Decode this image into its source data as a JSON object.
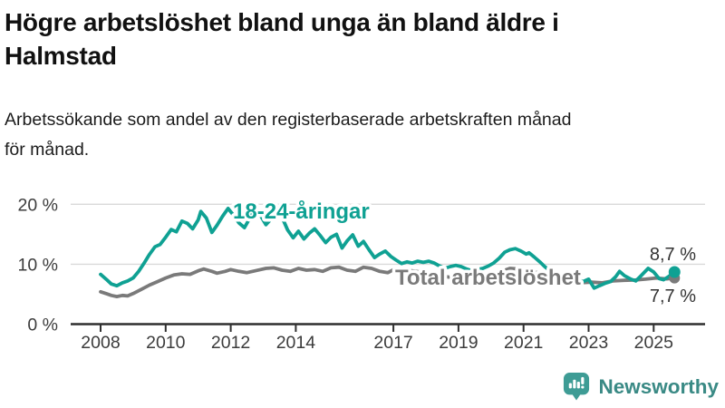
{
  "header": {
    "title": "Högre arbetslöshet bland unga än bland äldre i Halmstad",
    "title_lines": [
      "Högre arbetslöshet bland unga än bland äldre i",
      "Halmstad"
    ],
    "subtitle_lines": [
      "Arbetssökande som andel av den registerbaserade arbetskraften månad",
      "för månad."
    ]
  },
  "chart_data": {
    "type": "line",
    "title": "Högre arbetslöshet bland unga än bland äldre i Halmstad",
    "subtitle": "Arbetssökande som andel av den registerbaserade arbetskraften månad för månad.",
    "unit": "%",
    "grid": "horizontal",
    "x_axis": {
      "lim": [
        2007.6,
        2025.9
      ],
      "ticks": [
        {
          "year": 2008,
          "label": "2008"
        },
        {
          "year": 2010,
          "label": "2010"
        },
        {
          "year": 2012,
          "label": "2012"
        },
        {
          "year": 2014,
          "label": "2014"
        },
        {
          "year": 2017,
          "label": "2017"
        },
        {
          "year": 2019,
          "label": "2019"
        },
        {
          "year": 2021,
          "label": "2021"
        },
        {
          "year": 2023,
          "label": "2023"
        },
        {
          "year": 2025,
          "label": "2025"
        }
      ]
    },
    "y_axis": {
      "lim": [
        0,
        21.5
      ],
      "ticks": [
        {
          "value": 0,
          "label": "0 %"
        },
        {
          "value": 10,
          "label": "10 %"
        },
        {
          "value": 20,
          "label": "20 %"
        }
      ]
    },
    "colors": {
      "youth_line": "#0fa193",
      "total_line": "#7a7a7a",
      "axis": "#2f2f2f",
      "gridline": "#d9d9d9",
      "tick_label": "#3c3c3c",
      "end_label": "#333333"
    },
    "series": [
      {
        "name": "18-24-åringar",
        "color": "#0fa193",
        "end_label": "8,7 %",
        "last_value": 8.7,
        "points": [
          [
            2008.0,
            8.3
          ],
          [
            2008.17,
            7.5
          ],
          [
            2008.33,
            6.7
          ],
          [
            2008.5,
            6.4
          ],
          [
            2008.67,
            6.9
          ],
          [
            2008.83,
            7.2
          ],
          [
            2009.0,
            7.7
          ],
          [
            2009.17,
            8.8
          ],
          [
            2009.33,
            10.1
          ],
          [
            2009.5,
            11.6
          ],
          [
            2009.67,
            12.9
          ],
          [
            2009.83,
            13.3
          ],
          [
            2010.0,
            14.5
          ],
          [
            2010.17,
            15.8
          ],
          [
            2010.33,
            15.4
          ],
          [
            2010.5,
            17.2
          ],
          [
            2010.67,
            16.8
          ],
          [
            2010.83,
            15.9
          ],
          [
            2011.0,
            17.4
          ],
          [
            2011.08,
            18.8
          ],
          [
            2011.25,
            17.7
          ],
          [
            2011.42,
            15.3
          ],
          [
            2011.58,
            16.5
          ],
          [
            2011.75,
            18.0
          ],
          [
            2011.92,
            19.3
          ],
          [
            2012.08,
            18.2
          ],
          [
            2012.25,
            16.9
          ],
          [
            2012.42,
            16.1
          ],
          [
            2012.58,
            17.6
          ],
          [
            2012.75,
            19.2
          ],
          [
            2012.92,
            18.1
          ],
          [
            2013.08,
            16.6
          ],
          [
            2013.25,
            17.6
          ],
          [
            2013.42,
            18.9
          ],
          [
            2013.58,
            17.8
          ],
          [
            2013.75,
            15.7
          ],
          [
            2013.92,
            14.4
          ],
          [
            2014.08,
            15.5
          ],
          [
            2014.25,
            14.2
          ],
          [
            2014.42,
            15.2
          ],
          [
            2014.58,
            15.9
          ],
          [
            2014.75,
            14.8
          ],
          [
            2014.92,
            13.6
          ],
          [
            2015.08,
            14.5
          ],
          [
            2015.25,
            15.0
          ],
          [
            2015.42,
            12.7
          ],
          [
            2015.58,
            13.9
          ],
          [
            2015.75,
            14.9
          ],
          [
            2015.92,
            13.0
          ],
          [
            2016.08,
            13.8
          ],
          [
            2016.25,
            12.4
          ],
          [
            2016.42,
            11.1
          ],
          [
            2016.58,
            11.7
          ],
          [
            2016.75,
            12.2
          ],
          [
            2016.92,
            11.3
          ],
          [
            2017.08,
            10.7
          ],
          [
            2017.25,
            10.1
          ],
          [
            2017.42,
            10.4
          ],
          [
            2017.58,
            10.2
          ],
          [
            2017.75,
            10.5
          ],
          [
            2017.92,
            10.3
          ],
          [
            2018.08,
            10.5
          ],
          [
            2018.25,
            10.2
          ],
          [
            2018.42,
            9.7
          ],
          [
            2018.58,
            9.3
          ],
          [
            2018.75,
            9.6
          ],
          [
            2018.92,
            9.8
          ],
          [
            2019.08,
            9.6
          ],
          [
            2019.25,
            9.2
          ],
          [
            2019.42,
            8.9
          ],
          [
            2019.58,
            9.1
          ],
          [
            2019.75,
            9.3
          ],
          [
            2019.92,
            9.7
          ],
          [
            2020.08,
            10.2
          ],
          [
            2020.25,
            11.0
          ],
          [
            2020.42,
            12.0
          ],
          [
            2020.58,
            12.4
          ],
          [
            2020.75,
            12.6
          ],
          [
            2020.92,
            12.2
          ],
          [
            2021.08,
            11.7
          ],
          [
            2021.17,
            11.9
          ],
          [
            2021.33,
            11.2
          ],
          [
            2021.5,
            10.4
          ],
          [
            2021.67,
            9.5
          ],
          [
            2021.83,
            8.9
          ],
          [
            2022.0,
            8.4
          ],
          [
            2022.17,
            7.9
          ],
          [
            2022.33,
            7.3
          ],
          [
            2022.5,
            7.0
          ],
          [
            2022.67,
            7.4
          ],
          [
            2022.83,
            7.1
          ],
          [
            2023.0,
            7.5
          ],
          [
            2023.17,
            6.0
          ],
          [
            2023.33,
            6.4
          ],
          [
            2023.5,
            6.8
          ],
          [
            2023.67,
            7.1
          ],
          [
            2023.83,
            7.9
          ],
          [
            2023.95,
            8.8
          ],
          [
            2024.1,
            8.1
          ],
          [
            2024.3,
            7.5
          ],
          [
            2024.45,
            7.2
          ],
          [
            2024.6,
            8.0
          ],
          [
            2024.83,
            9.3
          ],
          [
            2025.0,
            8.7
          ],
          [
            2025.17,
            7.6
          ],
          [
            2025.3,
            7.4
          ],
          [
            2025.45,
            7.9
          ],
          [
            2025.64,
            8.7
          ]
        ]
      },
      {
        "name": "Total arbetslöshet",
        "color": "#7a7a7a",
        "end_label": "7,7 %",
        "last_value": 7.7,
        "points": [
          [
            2008.0,
            5.4
          ],
          [
            2008.17,
            5.1
          ],
          [
            2008.33,
            4.8
          ],
          [
            2008.5,
            4.6
          ],
          [
            2008.67,
            4.8
          ],
          [
            2008.83,
            4.7
          ],
          [
            2009.0,
            5.1
          ],
          [
            2009.25,
            5.8
          ],
          [
            2009.5,
            6.5
          ],
          [
            2009.75,
            7.1
          ],
          [
            2010.0,
            7.7
          ],
          [
            2010.25,
            8.2
          ],
          [
            2010.5,
            8.4
          ],
          [
            2010.75,
            8.3
          ],
          [
            2011.0,
            8.9
          ],
          [
            2011.17,
            9.2
          ],
          [
            2011.42,
            8.8
          ],
          [
            2011.58,
            8.5
          ],
          [
            2011.83,
            8.8
          ],
          [
            2012.0,
            9.1
          ],
          [
            2012.25,
            8.8
          ],
          [
            2012.5,
            8.6
          ],
          [
            2012.75,
            8.9
          ],
          [
            2012.92,
            9.1
          ],
          [
            2013.08,
            9.3
          ],
          [
            2013.33,
            9.4
          ],
          [
            2013.58,
            9.0
          ],
          [
            2013.83,
            8.8
          ],
          [
            2014.08,
            9.3
          ],
          [
            2014.33,
            9.0
          ],
          [
            2014.58,
            9.1
          ],
          [
            2014.83,
            8.8
          ],
          [
            2015.08,
            9.4
          ],
          [
            2015.33,
            9.5
          ],
          [
            2015.58,
            9.0
          ],
          [
            2015.83,
            8.8
          ],
          [
            2016.08,
            9.5
          ],
          [
            2016.33,
            9.3
          ],
          [
            2016.58,
            8.8
          ],
          [
            2016.83,
            8.6
          ],
          [
            2017.08,
            9.3
          ],
          [
            2017.33,
            9.1
          ],
          [
            2017.58,
            8.9
          ],
          [
            2017.83,
            8.7
          ],
          [
            2018.08,
            8.6
          ],
          [
            2018.42,
            8.1
          ],
          [
            2018.75,
            7.8
          ],
          [
            2019.08,
            7.6
          ],
          [
            2019.42,
            7.4
          ],
          [
            2019.75,
            7.5
          ],
          [
            2020.08,
            7.9
          ],
          [
            2020.33,
            8.8
          ],
          [
            2020.58,
            9.3
          ],
          [
            2020.83,
            9.2
          ],
          [
            2021.08,
            9.0
          ],
          [
            2021.42,
            8.6
          ],
          [
            2021.75,
            8.1
          ],
          [
            2022.08,
            7.5
          ],
          [
            2022.42,
            7.0
          ],
          [
            2022.75,
            6.9
          ],
          [
            2023.08,
            7.0
          ],
          [
            2023.42,
            6.9
          ],
          [
            2023.75,
            7.2
          ],
          [
            2024.08,
            7.3
          ],
          [
            2024.42,
            7.35
          ],
          [
            2024.75,
            7.5
          ],
          [
            2025.08,
            7.7
          ],
          [
            2025.4,
            7.55
          ],
          [
            2025.64,
            7.7
          ]
        ]
      }
    ]
  },
  "footer": {
    "brand": "Newsworthy",
    "brand_color": "#3e9c95"
  }
}
